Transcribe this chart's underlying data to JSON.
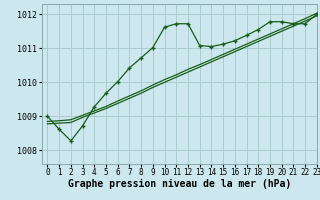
{
  "title": "",
  "xlabel": "Graphe pression niveau de la mer (hPa)",
  "bg_color": "#cce8ee",
  "grid_color": "#aacccc",
  "line_color": "#1a5c1a",
  "xlim": [
    -0.5,
    23
  ],
  "ylim": [
    1007.6,
    1012.3
  ],
  "yticks": [
    1008,
    1009,
    1010,
    1011,
    1012
  ],
  "xticks": [
    0,
    1,
    2,
    3,
    4,
    5,
    6,
    7,
    8,
    9,
    10,
    11,
    12,
    13,
    14,
    15,
    16,
    17,
    18,
    19,
    20,
    21,
    22,
    23
  ],
  "main_line_x": [
    0,
    1,
    2,
    3,
    4,
    5,
    6,
    7,
    8,
    9,
    10,
    11,
    12,
    13,
    14,
    15,
    16,
    17,
    18,
    19,
    20,
    21,
    22,
    23
  ],
  "main_line_y": [
    1009.0,
    1008.62,
    1008.28,
    1008.72,
    1009.28,
    1009.68,
    1010.02,
    1010.42,
    1010.72,
    1011.02,
    1011.62,
    1011.72,
    1011.72,
    1011.08,
    1011.05,
    1011.12,
    1011.22,
    1011.38,
    1011.55,
    1011.78,
    1011.78,
    1011.72,
    1011.72,
    1012.0
  ],
  "ref_line1_x": [
    0,
    1,
    2,
    3,
    4,
    5,
    6,
    7,
    8,
    9,
    10,
    11,
    12,
    13,
    14,
    15,
    16,
    17,
    18,
    19,
    20,
    21,
    22,
    23
  ],
  "ref_line1_y": [
    1008.85,
    1008.87,
    1008.9,
    1009.03,
    1009.16,
    1009.29,
    1009.45,
    1009.6,
    1009.75,
    1009.92,
    1010.08,
    1010.22,
    1010.38,
    1010.52,
    1010.67,
    1010.82,
    1010.97,
    1011.12,
    1011.27,
    1011.42,
    1011.57,
    1011.72,
    1011.87,
    1012.03
  ],
  "ref_line2_x": [
    0,
    1,
    2,
    3,
    4,
    5,
    6,
    7,
    8,
    9,
    10,
    11,
    12,
    13,
    14,
    15,
    16,
    17,
    18,
    19,
    20,
    21,
    22,
    23
  ],
  "ref_line2_y": [
    1008.78,
    1008.8,
    1008.82,
    1008.97,
    1009.1,
    1009.23,
    1009.38,
    1009.53,
    1009.68,
    1009.85,
    1010.0,
    1010.15,
    1010.3,
    1010.45,
    1010.6,
    1010.75,
    1010.9,
    1011.05,
    1011.2,
    1011.35,
    1011.5,
    1011.65,
    1011.8,
    1011.95
  ],
  "xlabel_fontsize": 7.0,
  "tick_fontsize": 5.5,
  "ytick_fontsize": 6.0
}
